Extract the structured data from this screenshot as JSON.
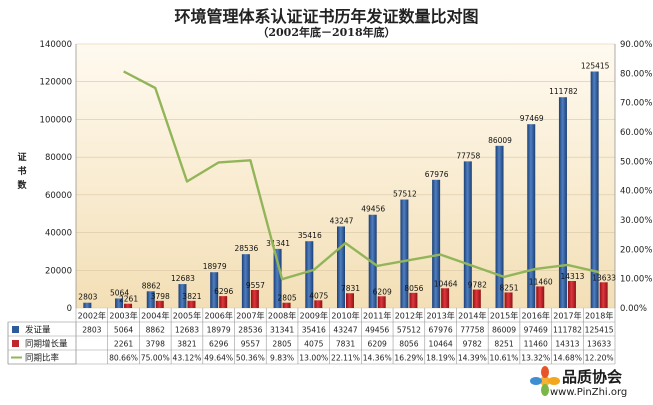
{
  "chart_data": {
    "type": "bar",
    "title": "环境管理体系认证证书历年发证数量比对图",
    "subtitle": "（2002年底－2018年底）",
    "ylabel": "证书数",
    "categories": [
      "2002年",
      "2003年",
      "2004年",
      "2005年",
      "2006年",
      "2007年",
      "2008年",
      "2009年",
      "2010年",
      "2011年",
      "2012年",
      "2013年",
      "2014年",
      "2015年",
      "2016年",
      "2017年",
      "2018年"
    ],
    "ylim": [
      0,
      140000
    ],
    "yticks": [
      "0",
      "20000",
      "40000",
      "60000",
      "80000",
      "100000",
      "120000",
      "140000"
    ],
    "y2lim": [
      0,
      90
    ],
    "y2ticks": [
      "0.00%",
      "10.00%",
      "20.00%",
      "30.00%",
      "40.00%",
      "50.00%",
      "60.00%",
      "70.00%",
      "80.00%",
      "90.00%"
    ],
    "grid": true,
    "series": [
      {
        "name": "发证量",
        "type": "bar",
        "color": "#2e5b9a",
        "values": [
          2803,
          5064,
          8862,
          12683,
          18979,
          28536,
          31341,
          35416,
          43247,
          49456,
          57512,
          67976,
          77758,
          86009,
          97469,
          111782,
          125415
        ],
        "labels": [
          "2803",
          "5064",
          "8862",
          "12683",
          "18979",
          "28536",
          "31341",
          "35416",
          "43247",
          "49456",
          "57512",
          "67976",
          "77758",
          "86009",
          "97469",
          "111782",
          "125415"
        ]
      },
      {
        "name": "同期增长量",
        "type": "bar",
        "color": "#c0272d",
        "values": [
          null,
          2261,
          3798,
          3821,
          6296,
          9557,
          2805,
          4075,
          7831,
          6209,
          8056,
          10464,
          9782,
          8251,
          11460,
          14313,
          13633
        ],
        "labels": [
          "",
          "2261",
          "3798",
          "3821",
          "6296",
          "9557",
          "2805",
          "4075",
          "7831",
          "6209",
          "8056",
          "10464",
          "9782",
          "8251",
          "11460",
          "14313",
          "13633"
        ]
      },
      {
        "name": "同期比率",
        "type": "line",
        "axis": "right",
        "color": "#93b55a",
        "values": [
          null,
          80.66,
          75.0,
          43.12,
          49.64,
          50.36,
          9.83,
          13.0,
          22.11,
          14.36,
          16.29,
          18.19,
          14.39,
          10.61,
          13.32,
          14.68,
          12.2
        ],
        "labels": [
          "",
          "80.66%",
          "75.00%",
          "43.12%",
          "49.64%",
          "50.36%",
          "9.83%",
          "13.00%",
          "22.11%",
          "14.36%",
          "16.29%",
          "18.19%",
          "14.39%",
          "10.61%",
          "13.32%",
          "14.68%",
          "12.20%"
        ]
      }
    ],
    "legend": "data-table-below"
  },
  "logo": {
    "name": "品质协会",
    "url": "www.PinZhi.org"
  }
}
